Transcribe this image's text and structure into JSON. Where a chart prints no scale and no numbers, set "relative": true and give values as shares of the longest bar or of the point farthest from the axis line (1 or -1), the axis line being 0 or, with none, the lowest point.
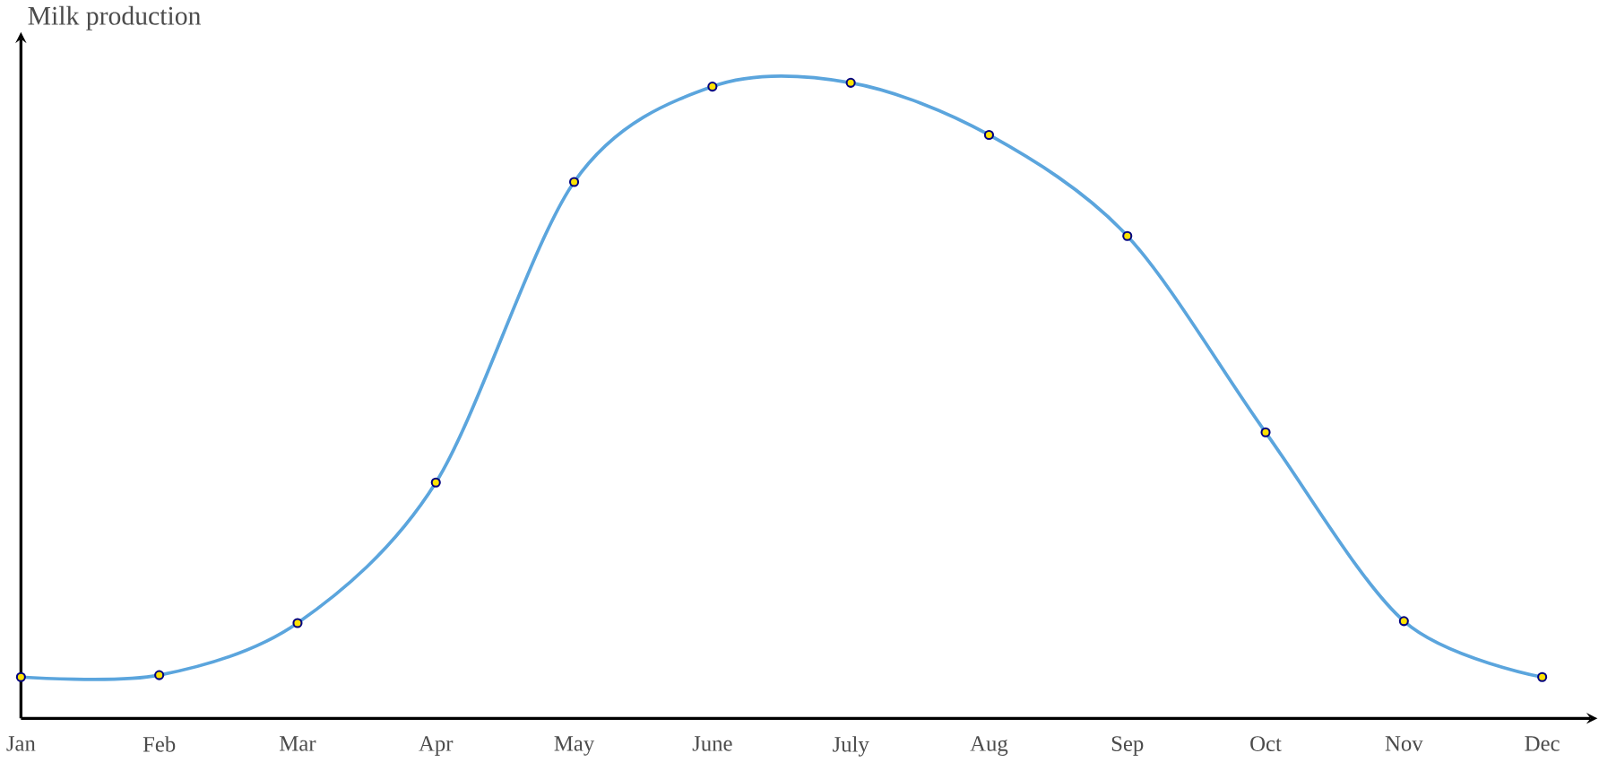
{
  "chart_data": {
    "type": "line",
    "ylabel": "Milk production",
    "relative": true,
    "categories": [
      "Jan",
      "Feb",
      "Mar",
      "Apr",
      "May",
      "June",
      "July",
      "Aug",
      "Sep",
      "Oct",
      "Nov",
      "Dec"
    ],
    "series": [
      {
        "color": "#5ba5dd",
        "values": [
          0.065,
          0.068,
          0.15,
          0.371,
          0.844,
          0.994,
          1,
          0.918,
          0.759,
          0.45,
          0.153,
          0.065
        ]
      }
    ],
    "marker": "circle"
  }
}
